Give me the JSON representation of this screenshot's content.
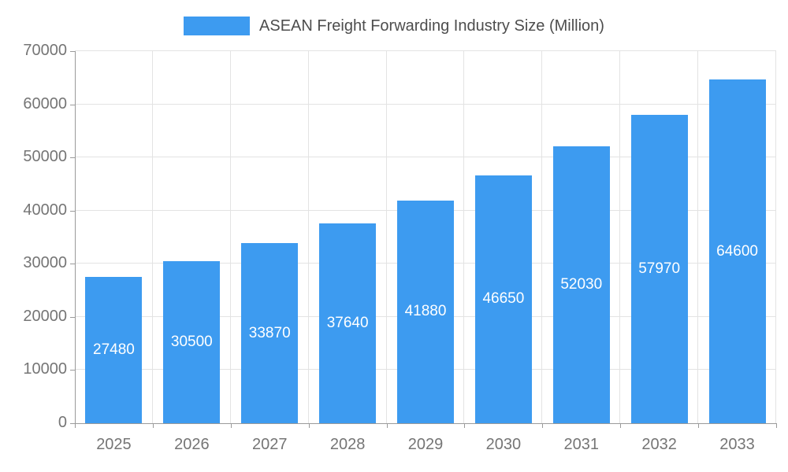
{
  "chart_data": {
    "type": "bar",
    "title": "ASEAN Freight Forwarding Industry Size (Million)",
    "categories": [
      "2025",
      "2026",
      "2027",
      "2028",
      "2029",
      "2030",
      "2031",
      "2032",
      "2033"
    ],
    "values": [
      27480,
      30500,
      33870,
      37640,
      41880,
      46650,
      52030,
      57970,
      64600
    ],
    "xlabel": "",
    "ylabel": "",
    "ylim": [
      0,
      70000
    ],
    "yticks": [
      0,
      10000,
      20000,
      30000,
      40000,
      50000,
      60000,
      70000
    ],
    "grid": "on",
    "legend_position": "top-center",
    "colors": {
      "bar": "#3d9bf0",
      "title_text": "#4d4d4d",
      "tick_label": "#757575",
      "grid_line": "#e3e3e3",
      "axis_line": "#9a9a9a",
      "value_label": "#ffffff",
      "background": "#ffffff"
    }
  }
}
